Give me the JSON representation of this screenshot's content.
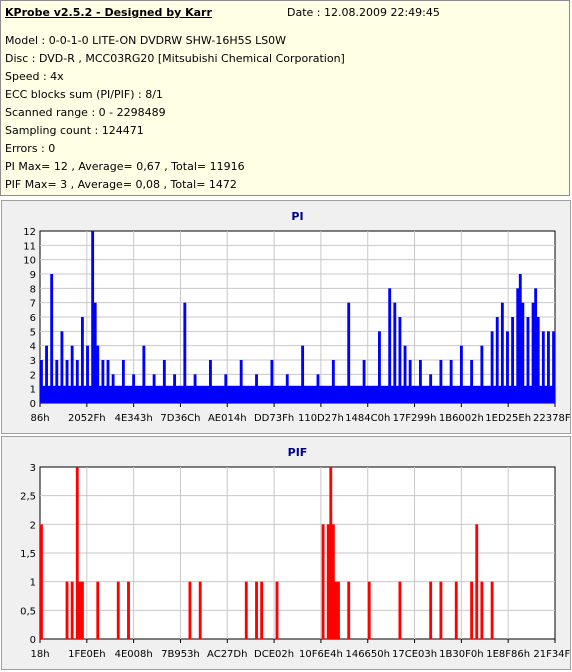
{
  "header": {
    "title": "KProbe v2.5.2 - Designed by Karr",
    "date": "Date : 12.08.2009 22:49:45"
  },
  "info_lines": [
    "Model : 0-0-1-0 LITE-ON DVDRW SHW-16H5S  LS0W",
    "Disc : DVD-R , MCC03RG20 [Mitsubishi Chemical Corporation]",
    "Speed : 4x",
    "ECC blocks sum (PI/PIF) : 8/1",
    "Scanned range : 0 - 2298489",
    "Sampling count : 124471",
    "Errors : 0",
    "PI Max= 12 , Average= 0,67 , Total= 11916",
    "PIF Max= 3 , Average= 0,08 , Total= 1472"
  ],
  "colors": {
    "info_bg": "#ffffe6",
    "pi_series": "#0000ff",
    "pif_series": "#ff0000",
    "chart_title": "#00008b"
  },
  "chart_data": [
    {
      "type": "bar",
      "title": "PI",
      "ylim": [
        0,
        12
      ],
      "yticks": [
        "0",
        "1",
        "2",
        "3",
        "4",
        "5",
        "6",
        "7",
        "8",
        "9",
        "10",
        "11",
        "12"
      ],
      "xticks": [
        "86h",
        "2052Fh",
        "4E343h",
        "7D36Ch",
        "AE014h",
        "DD73Fh",
        "110D27h",
        "1484C0h",
        "17F299h",
        "1B6002h",
        "1ED25Eh",
        "22378Fh"
      ],
      "grid": true,
      "series": [
        {
          "color": "#0000ff",
          "points": [
            [
              0.0,
              3
            ],
            [
              0.01,
              4
            ],
            [
              0.02,
              9
            ],
            [
              0.03,
              3
            ],
            [
              0.04,
              5
            ],
            [
              0.05,
              3
            ],
            [
              0.06,
              4
            ],
            [
              0.07,
              3
            ],
            [
              0.08,
              6
            ],
            [
              0.09,
              4
            ],
            [
              0.1,
              12
            ],
            [
              0.105,
              7
            ],
            [
              0.11,
              4
            ],
            [
              0.12,
              3
            ],
            [
              0.13,
              3
            ],
            [
              0.14,
              2
            ],
            [
              0.16,
              3
            ],
            [
              0.18,
              2
            ],
            [
              0.2,
              4
            ],
            [
              0.22,
              2
            ],
            [
              0.24,
              3
            ],
            [
              0.26,
              2
            ],
            [
              0.28,
              7
            ],
            [
              0.3,
              2
            ],
            [
              0.33,
              3
            ],
            [
              0.36,
              2
            ],
            [
              0.39,
              3
            ],
            [
              0.42,
              2
            ],
            [
              0.45,
              3
            ],
            [
              0.48,
              2
            ],
            [
              0.51,
              4
            ],
            [
              0.54,
              2
            ],
            [
              0.57,
              3
            ],
            [
              0.6,
              7
            ],
            [
              0.63,
              3
            ],
            [
              0.66,
              5
            ],
            [
              0.68,
              8
            ],
            [
              0.69,
              7
            ],
            [
              0.7,
              6
            ],
            [
              0.71,
              4
            ],
            [
              0.72,
              3
            ],
            [
              0.74,
              3
            ],
            [
              0.76,
              2
            ],
            [
              0.78,
              3
            ],
            [
              0.8,
              3
            ],
            [
              0.82,
              4
            ],
            [
              0.84,
              3
            ],
            [
              0.86,
              4
            ],
            [
              0.88,
              5
            ],
            [
              0.89,
              6
            ],
            [
              0.9,
              7
            ],
            [
              0.91,
              5
            ],
            [
              0.92,
              6
            ],
            [
              0.93,
              8
            ],
            [
              0.935,
              9
            ],
            [
              0.94,
              7
            ],
            [
              0.95,
              6
            ],
            [
              0.96,
              7
            ],
            [
              0.965,
              8
            ],
            [
              0.97,
              6
            ],
            [
              0.98,
              5
            ],
            [
              0.99,
              5
            ],
            [
              1.0,
              5
            ]
          ]
        }
      ]
    },
    {
      "type": "bar",
      "title": "PIF",
      "ylim": [
        0,
        3
      ],
      "yticks": [
        "0",
        "0,5",
        "1",
        "1,5",
        "2",
        "2,5",
        "3"
      ],
      "xticks": [
        "18h",
        "1FE0Eh",
        "4E008h",
        "7B953h",
        "AC27Dh",
        "DCE02h",
        "10F6E4h",
        "146650h",
        "17CE03h",
        "1B30F0h",
        "1E8F86h",
        "21F34Fh"
      ],
      "grid": true,
      "series": [
        {
          "color": "#ff0000",
          "points": [
            [
              0.0,
              2
            ],
            [
              0.05,
              1
            ],
            [
              0.06,
              1
            ],
            [
              0.07,
              3
            ],
            [
              0.075,
              1
            ],
            [
              0.08,
              1
            ],
            [
              0.11,
              1
            ],
            [
              0.15,
              1
            ],
            [
              0.17,
              1
            ],
            [
              0.29,
              1
            ],
            [
              0.31,
              1
            ],
            [
              0.4,
              1
            ],
            [
              0.42,
              1
            ],
            [
              0.43,
              1
            ],
            [
              0.46,
              1
            ],
            [
              0.55,
              2
            ],
            [
              0.56,
              2
            ],
            [
              0.565,
              3
            ],
            [
              0.57,
              2
            ],
            [
              0.575,
              1
            ],
            [
              0.58,
              1
            ],
            [
              0.6,
              1
            ],
            [
              0.64,
              1
            ],
            [
              0.7,
              1
            ],
            [
              0.76,
              1
            ],
            [
              0.78,
              1
            ],
            [
              0.81,
              1
            ],
            [
              0.84,
              1
            ],
            [
              0.85,
              2
            ],
            [
              0.86,
              1
            ],
            [
              0.88,
              1
            ]
          ]
        }
      ]
    }
  ]
}
